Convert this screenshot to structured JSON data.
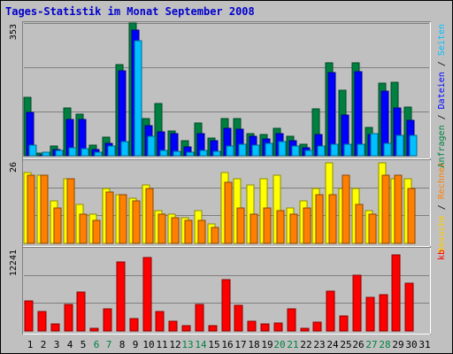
{
  "title": "Tages-Statistik im Monat September 2008",
  "colors": {
    "background": "#C0C0C0",
    "title": "#0000CC",
    "anfragen": "#008040",
    "dateien": "#0000FF",
    "seiten": "#00C0FF",
    "besuche": "#FFFF00",
    "rechner": "#FF8000",
    "kb": "#FF0000",
    "weekend_label": "#008040",
    "gridline": "#7F7F7F"
  },
  "chart_data": {
    "type": "bar",
    "categories": [
      "1",
      "2",
      "3",
      "4",
      "5",
      "6",
      "7",
      "8",
      "9",
      "10",
      "11",
      "12",
      "13",
      "14",
      "15",
      "16",
      "17",
      "18",
      "19",
      "20",
      "21",
      "22",
      "23",
      "24",
      "25",
      "26",
      "27",
      "28",
      "29",
      "30",
      "31"
    ],
    "weekend_days": [
      "6",
      "7",
      "13",
      "14",
      "20",
      "21",
      "27",
      "28"
    ],
    "panels": [
      {
        "id": "hits",
        "max_label": "353",
        "ylim": [
          0,
          353
        ],
        "right_labels": [
          {
            "text": "Anfragen",
            "color": "#008040"
          },
          {
            "text": "Dateien",
            "color": "#0000FF"
          },
          {
            "text": "Seiten",
            "color": "#00C0FF"
          }
        ],
        "series": [
          {
            "name": "Anfragen",
            "color": "#008040",
            "values": [
              156,
              7,
              25,
              128,
              111,
              28,
              50,
              243,
              353,
              99,
              138,
              67,
              40,
              88,
              46,
              100,
              100,
              59,
              56,
              74,
              52,
              30,
              124,
              246,
              174,
              247,
              76,
              194,
              196,
              130,
              0
            ]
          },
          {
            "name": "Dateien",
            "color": "#0000FF",
            "values": [
              115,
              3,
              17,
              97,
              96,
              16,
              33,
              227,
              334,
              81,
              64,
              59,
              24,
              59,
              39,
              72,
              71,
              51,
              44,
              60,
              41,
              22,
              57,
              222,
              108,
              224,
              57,
              171,
              128,
              95,
              0
            ]
          },
          {
            "name": "Seiten",
            "color": "#00C0FF",
            "values": [
              28,
              9,
              14,
              22,
              19,
              10,
              27,
              37,
              305,
              52,
              15,
              12,
              9,
              13,
              12,
              27,
              30,
              28,
              33,
              38,
              27,
              14,
              27,
              31,
              31,
              31,
              58,
              34,
              53,
              53,
              0
            ]
          }
        ]
      },
      {
        "id": "visits",
        "max_label": "26",
        "ylim": [
          0,
          26
        ],
        "right_labels": [
          {
            "text": "Besuche",
            "color": "#FFCC00"
          },
          {
            "text": "Rechner",
            "color": "#FF8000"
          }
        ],
        "series": [
          {
            "name": "Besuche",
            "color": "#FFFF00",
            "values": [
              22,
              21,
              13,
              20,
              12,
              9,
              17,
              15,
              14,
              18,
              10,
              9,
              8,
              10,
              6,
              22,
              20,
              18,
              20,
              21,
              11,
              13,
              17,
              25,
              17,
              17,
              10,
              25,
              20,
              20,
              0
            ]
          },
          {
            "name": "Rechner",
            "color": "#FF8000",
            "values": [
              21,
              21,
              11,
              20,
              9,
              7,
              16,
              15,
              13,
              17,
              9,
              8,
              7,
              7,
              5,
              19,
              11,
              9,
              11,
              10,
              9,
              11,
              15,
              15,
              21,
              12,
              9,
              21,
              21,
              17,
              0
            ]
          }
        ]
      },
      {
        "id": "kb",
        "max_label": "12241",
        "ylim": [
          0,
          12241
        ],
        "right_labels": [
          {
            "text": "kb",
            "color": "#FF0000"
          }
        ],
        "series": [
          {
            "name": "kb",
            "color": "#FF0000",
            "values": [
              4412,
              2866,
              1032,
              3816,
              5634,
              405,
              3201,
              10009,
              1771,
              10695,
              2879,
              1474,
              807,
              3856,
              829,
              7426,
              3690,
              1438,
              1027,
              1110,
              3232,
              392,
              1240,
              5783,
              2247,
              8128,
              4890,
              5221,
              11039,
              6917,
              0
            ]
          }
        ]
      }
    ]
  }
}
